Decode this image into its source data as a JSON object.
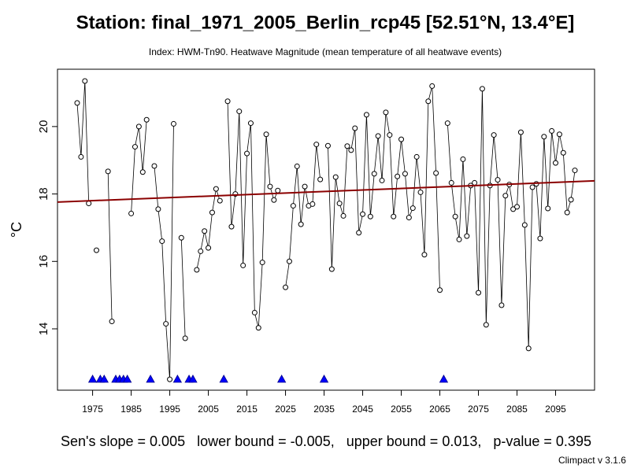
{
  "chart_data": {
    "type": "line",
    "title": "Station: final_1971_2005_Berlin_rcp45 [52.51°N, 13.4°E]",
    "subtitle": "Index: HWM-Tn90. Heatwave Magnitude (mean temperature of all heatwave events)",
    "y_label": "°C",
    "footer": "Sen's slope = 0.005   lower bound = -0.005,   upper bound = 0.013,   p-value = 0.395",
    "version": "Climpact v 3.1.6",
    "x": [
      1971,
      1972,
      1973,
      1974,
      1975,
      1976,
      1977,
      1978,
      1979,
      1980,
      1981,
      1982,
      1983,
      1984,
      1985,
      1986,
      1987,
      1988,
      1989,
      1990,
      1991,
      1992,
      1993,
      1994,
      1995,
      1996,
      1997,
      1998,
      1999,
      2000,
      2001,
      2002,
      2003,
      2004,
      2005,
      2006,
      2007,
      2008,
      2009,
      2010,
      2011,
      2012,
      2013,
      2014,
      2015,
      2016,
      2017,
      2018,
      2019,
      2020,
      2021,
      2022,
      2023,
      2024,
      2025,
      2026,
      2027,
      2028,
      2029,
      2030,
      2031,
      2032,
      2033,
      2034,
      2035,
      2036,
      2037,
      2038,
      2039,
      2040,
      2041,
      2042,
      2043,
      2044,
      2045,
      2046,
      2047,
      2048,
      2049,
      2050,
      2051,
      2052,
      2053,
      2054,
      2055,
      2056,
      2057,
      2058,
      2059,
      2060,
      2061,
      2062,
      2063,
      2064,
      2065,
      2066,
      2067,
      2068,
      2069,
      2070,
      2071,
      2072,
      2073,
      2074,
      2075,
      2076,
      2077,
      2078,
      2079,
      2080,
      2081,
      2082,
      2083,
      2084,
      2085,
      2086,
      2087,
      2088,
      2089,
      2090,
      2091,
      2092,
      2093,
      2094,
      2095,
      2096,
      2097,
      2098,
      2099,
      2100
    ],
    "series": [
      {
        "name": "HWM-Tn90",
        "color": "#000000",
        "values": [
          20.7,
          19.1,
          21.35,
          17.72,
          null,
          16.33,
          null,
          null,
          18.67,
          14.22,
          null,
          null,
          null,
          null,
          17.42,
          19.4,
          20.0,
          18.65,
          20.2,
          null,
          18.83,
          17.55,
          16.6,
          14.15,
          12.5,
          20.08,
          null,
          16.7,
          13.72,
          null,
          null,
          15.75,
          16.3,
          16.9,
          16.4,
          17.45,
          18.15,
          17.8,
          null,
          20.75,
          17.03,
          18.0,
          20.45,
          15.88,
          19.2,
          20.1,
          14.48,
          14.03,
          15.97,
          19.77,
          18.22,
          17.82,
          18.1,
          null,
          15.23,
          16.0,
          17.65,
          18.82,
          17.1,
          18.22,
          17.65,
          17.7,
          19.47,
          18.43,
          null,
          19.43,
          15.77,
          18.5,
          17.72,
          17.35,
          19.42,
          19.3,
          19.95,
          16.85,
          17.4,
          20.35,
          17.33,
          18.6,
          19.72,
          18.4,
          20.42,
          19.75,
          17.33,
          18.52,
          19.62,
          18.6,
          17.3,
          17.58,
          19.1,
          18.05,
          16.2,
          20.75,
          21.2,
          18.62,
          15.15,
          null,
          20.1,
          18.33,
          17.33,
          16.65,
          19.03,
          16.75,
          18.25,
          18.33,
          15.07,
          21.12,
          14.12,
          18.25,
          19.75,
          18.42,
          14.7,
          17.95,
          18.28,
          17.55,
          17.62,
          19.83,
          17.08,
          13.42,
          18.2,
          18.3,
          16.68,
          19.7,
          17.57,
          19.87,
          18.92,
          19.77,
          19.22,
          17.45,
          17.83,
          18.7
        ]
      }
    ],
    "trend": {
      "color": "#8b0000",
      "x": [
        1965.9,
        2105.1
      ],
      "values": [
        17.76,
        18.39
      ]
    },
    "missing": {
      "color": "#0000ff",
      "x": [
        1975,
        1977,
        1978,
        1981,
        1982,
        1983,
        1984,
        1990,
        1997,
        2000,
        2001,
        2009,
        2024,
        2035,
        2066
      ]
    },
    "xlim": [
      1965.9,
      2105.1
    ],
    "ylim": [
      12.18,
      21.7
    ],
    "xticks": [
      1975,
      1985,
      1995,
      2005,
      2015,
      2025,
      2035,
      2045,
      2055,
      2065,
      2075,
      2085,
      2095
    ],
    "yticks": [
      14,
      16,
      18,
      20
    ]
  }
}
